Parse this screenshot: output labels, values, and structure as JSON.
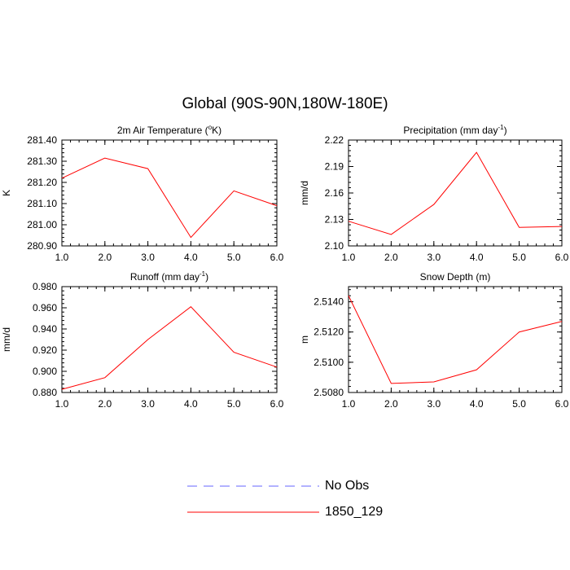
{
  "title": "Global (90S-90N,180W-180E)",
  "legend": [
    {
      "label": "No Obs",
      "color": "#6666ff",
      "dashed": true
    },
    {
      "label": "1850_129",
      "color": "#ff0000",
      "dashed": false
    }
  ],
  "chart_data": [
    {
      "type": "line",
      "title": "2m Air Temperature (",
      "title_unit": "°K",
      "title_sup": "o",
      "title_rest": "K)",
      "ylabel": "K",
      "x": [
        1.0,
        2.0,
        3.0,
        4.0,
        5.0,
        6.0
      ],
      "xticks": [
        "1.0",
        "2.0",
        "3.0",
        "4.0",
        "5.0",
        "6.0"
      ],
      "xlim": [
        1.0,
        6.0
      ],
      "ylim": [
        280.9,
        281.4
      ],
      "yticks": [
        "280.90",
        "281.00",
        "281.10",
        "281.20",
        "281.30",
        "281.40"
      ],
      "ytick_values": [
        280.9,
        281.0,
        281.1,
        281.2,
        281.3,
        281.4
      ],
      "series": [
        {
          "name": "1850_129",
          "color": "#ff0000",
          "values": [
            281.22,
            281.315,
            281.265,
            280.94,
            281.16,
            281.09
          ]
        }
      ]
    },
    {
      "type": "line",
      "title": "Precipitation (mm day",
      "title_sup": "-1",
      "title_rest": ")",
      "ylabel": "mm/d",
      "x": [
        1.0,
        2.0,
        3.0,
        4.0,
        5.0,
        6.0
      ],
      "xticks": [
        "1.0",
        "2.0",
        "3.0",
        "4.0",
        "5.0",
        "6.0"
      ],
      "xlim": [
        1.0,
        6.0
      ],
      "ylim": [
        2.1,
        2.22
      ],
      "yticks": [
        "2.10",
        "2.13",
        "2.16",
        "2.19",
        "2.22"
      ],
      "ytick_values": [
        2.1,
        2.13,
        2.16,
        2.19,
        2.22
      ],
      "series": [
        {
          "name": "1850_129",
          "color": "#ff0000",
          "values": [
            2.128,
            2.113,
            2.147,
            2.206,
            2.121,
            2.122
          ]
        }
      ]
    },
    {
      "type": "line",
      "title": "Runoff (mm day",
      "title_sup": "-1",
      "title_rest": ")",
      "ylabel": "mm/d",
      "x": [
        1.0,
        2.0,
        3.0,
        4.0,
        5.0,
        6.0
      ],
      "xticks": [
        "1.0",
        "2.0",
        "3.0",
        "4.0",
        "5.0",
        "6.0"
      ],
      "xlim": [
        1.0,
        6.0
      ],
      "ylim": [
        0.88,
        0.98
      ],
      "yticks": [
        "0.880",
        "0.900",
        "0.920",
        "0.940",
        "0.960",
        "0.980"
      ],
      "ytick_values": [
        0.88,
        0.9,
        0.92,
        0.94,
        0.96,
        0.98
      ],
      "series": [
        {
          "name": "1850_129",
          "color": "#ff0000",
          "values": [
            0.883,
            0.894,
            0.93,
            0.961,
            0.918,
            0.904
          ]
        }
      ]
    },
    {
      "type": "line",
      "title": "Snow Depth (m)",
      "title_sup": "",
      "title_rest": "",
      "ylabel": "m",
      "x": [
        1.0,
        2.0,
        3.0,
        4.0,
        5.0,
        6.0
      ],
      "xticks": [
        "1.0",
        "2.0",
        "3.0",
        "4.0",
        "5.0",
        "6.0"
      ],
      "xlim": [
        1.0,
        6.0
      ],
      "ylim": [
        2.508,
        2.515
      ],
      "yticks": [
        "2.5080",
        "2.5100",
        "2.5120",
        "2.5140"
      ],
      "ytick_values": [
        2.508,
        2.51,
        2.512,
        2.514
      ],
      "series": [
        {
          "name": "1850_129",
          "color": "#ff0000",
          "values": [
            2.5144,
            2.5086,
            2.5087,
            2.5095,
            2.512,
            2.5127
          ]
        }
      ]
    }
  ]
}
